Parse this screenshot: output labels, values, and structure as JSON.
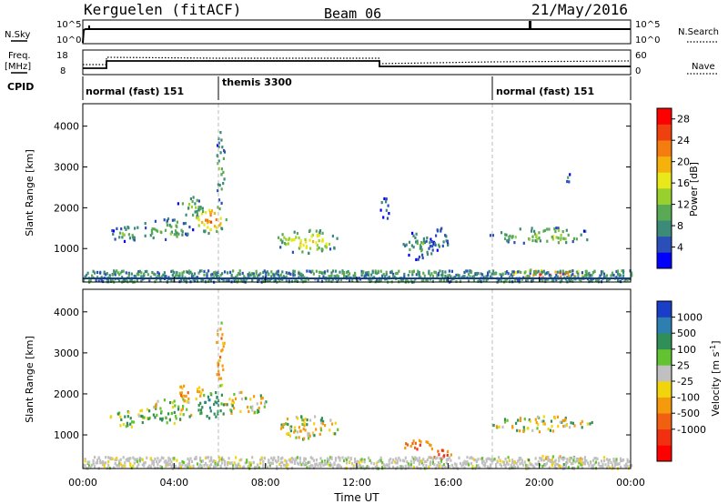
{
  "header": {
    "station": "Kerguelen (fitACF)",
    "beam": "Beam 06",
    "date": "21/May/2016"
  },
  "strip_labels": {
    "nsky": "N.Sky",
    "nsearch": "N.Search",
    "nsky_ticks": [
      "10^5",
      "10^0"
    ],
    "nsearch_ticks": [
      "10^5",
      "10^0"
    ],
    "freq": "Freq.",
    "freq_unit": "[MHz]",
    "freq_ticks": [
      "18",
      "8"
    ],
    "nave": "Nave",
    "nave_ticks": [
      "60",
      "0"
    ],
    "cpid": "CPID"
  },
  "cpid_segments": [
    {
      "label": "normal (fast) 151",
      "start_hour": 0
    },
    {
      "label": "themis 3300",
      "start_hour": 6
    },
    {
      "label": "normal (fast) 151",
      "start_hour": 18
    }
  ],
  "axes": {
    "xlabel": "Time UT",
    "x_ticks": [
      "00:00",
      "04:00",
      "08:00",
      "12:00",
      "16:00",
      "20:00",
      "00:00"
    ],
    "x_range_hours": [
      0,
      24
    ],
    "ylabel": "Slant Range [km]",
    "y_ticks": [
      "4000",
      "3000",
      "2000",
      "1000"
    ],
    "y_range_km": [
      180,
      4550
    ]
  },
  "power_scale": {
    "title": "Power [dB]",
    "ticks": [
      "28",
      "24",
      "20",
      "16",
      "12",
      "8",
      "4"
    ],
    "range": [
      0,
      30
    ],
    "colors": [
      "#0000ff",
      "#2a4fb8",
      "#3c8a78",
      "#5aaa55",
      "#98d02e",
      "#e8e81a",
      "#f5b20c",
      "#f57d10",
      "#f04010",
      "#ff0000"
    ]
  },
  "velocity_scale": {
    "title": "Velocity [m s",
    "title_exp": "-1",
    "title_close": "]",
    "ticks": [
      "1000",
      "500",
      "100",
      "25",
      "-25",
      "-100",
      "-500",
      "-1000"
    ],
    "colors": [
      "#1a3ec8",
      "#2d7fb0",
      "#2f8f56",
      "#62c230",
      "#c0c0c0",
      "#f2d40c",
      "#f49a0c",
      "#f06010",
      "#f03010",
      "#ff0000"
    ]
  },
  "chart_data": [
    {
      "type": "heatmap",
      "title": "Power",
      "xlabel": "Time UT",
      "ylabel": "Slant Range [km]",
      "x_range": [
        0,
        24
      ],
      "y_range": [
        180,
        4550
      ],
      "value_range_db": [
        0,
        30
      ],
      "blobs": [
        {
          "t": 1.9,
          "r": 1400,
          "dt": 0.8,
          "dr": 200,
          "peak": 10
        },
        {
          "t": 3.6,
          "r": 1500,
          "dt": 1.2,
          "dr": 280,
          "peak": 12
        },
        {
          "t": 4.7,
          "r": 2050,
          "dt": 0.6,
          "dr": 250,
          "peak": 12
        },
        {
          "t": 5.6,
          "r": 1750,
          "dt": 0.7,
          "dr": 350,
          "peak": 24
        },
        {
          "t": 6.0,
          "r": 3000,
          "dt": 0.2,
          "dr": 900,
          "peak": 12
        },
        {
          "t": 9.8,
          "r": 1200,
          "dt": 1.4,
          "dr": 300,
          "peak": 18
        },
        {
          "t": 13.2,
          "r": 2000,
          "dt": 0.2,
          "dr": 300,
          "peak": 8
        },
        {
          "t": 14.7,
          "r": 1100,
          "dt": 0.7,
          "dr": 350,
          "peak": 10
        },
        {
          "t": 15.6,
          "r": 1250,
          "dt": 0.4,
          "dr": 300,
          "peak": 10
        },
        {
          "t": 20.1,
          "r": 1350,
          "dt": 2.3,
          "dr": 200,
          "peak": 14
        },
        {
          "t": 21.3,
          "r": 2750,
          "dt": 0.2,
          "dr": 100,
          "peak": 10
        },
        {
          "t": 20.4,
          "r": 400,
          "dt": 2.0,
          "dr": 120,
          "peak": 28
        }
      ]
    },
    {
      "type": "heatmap",
      "title": "Velocity",
      "xlabel": "Time UT",
      "ylabel": "Slant Range [km]",
      "x_range": [
        0,
        24
      ],
      "y_range": [
        180,
        4550
      ],
      "value_range_ms": [
        -1000,
        1000
      ],
      "blobs": [
        {
          "t": 1.9,
          "r": 1400,
          "dt": 0.8,
          "dr": 200,
          "peak": 100
        },
        {
          "t": 3.6,
          "r": 1600,
          "dt": 1.2,
          "dr": 300,
          "peak": 50
        },
        {
          "t": 4.7,
          "r": 2050,
          "dt": 0.6,
          "dr": 250,
          "peak": -150
        },
        {
          "t": 5.6,
          "r": 1750,
          "dt": 0.7,
          "dr": 350,
          "peak": 300
        },
        {
          "t": 6.0,
          "r": 3000,
          "dt": 0.2,
          "dr": 900,
          "peak": -200
        },
        {
          "t": 7.0,
          "r": 1800,
          "dt": 1.0,
          "dr": 300,
          "peak": 0
        },
        {
          "t": 9.8,
          "r": 1200,
          "dt": 1.4,
          "dr": 300,
          "peak": 0
        },
        {
          "t": 14.7,
          "r": 750,
          "dt": 0.7,
          "dr": 150,
          "peak": -300
        },
        {
          "t": 15.6,
          "r": 550,
          "dt": 0.5,
          "dr": 120,
          "peak": -500
        },
        {
          "t": 20.1,
          "r": 1300,
          "dt": 2.3,
          "dr": 200,
          "peak": 0
        },
        {
          "t": 20.4,
          "r": 400,
          "dt": 2.0,
          "dr": 120,
          "peak": 0
        }
      ]
    }
  ]
}
